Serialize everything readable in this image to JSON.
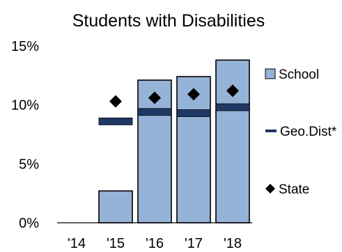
{
  "chart_data": {
    "type": "bar",
    "title": "Students with Disabilities",
    "xlabel": "",
    "ylabel": "",
    "categories": [
      "'14",
      "'15",
      "'16",
      "'17",
      "'18"
    ],
    "ylim": [
      0,
      15
    ],
    "y_ticks": [
      0,
      5,
      10,
      15
    ],
    "y_tick_labels": [
      "0%",
      "5%",
      "10%",
      "15%"
    ],
    "grid": false,
    "legend_position": "right",
    "series": [
      {
        "name": "School",
        "kind": "bar",
        "color": "#95b3d7",
        "values": [
          null,
          2.7,
          12.1,
          12.4,
          13.8
        ]
      },
      {
        "name": "Geo.Dist*",
        "kind": "line-marker",
        "color": "#1f3864",
        "values": [
          null,
          8.6,
          9.4,
          9.3,
          9.8
        ]
      },
      {
        "name": "State",
        "kind": "diamond",
        "color": "#000000",
        "values": [
          null,
          10.3,
          10.6,
          10.9,
          11.2
        ]
      }
    ]
  }
}
